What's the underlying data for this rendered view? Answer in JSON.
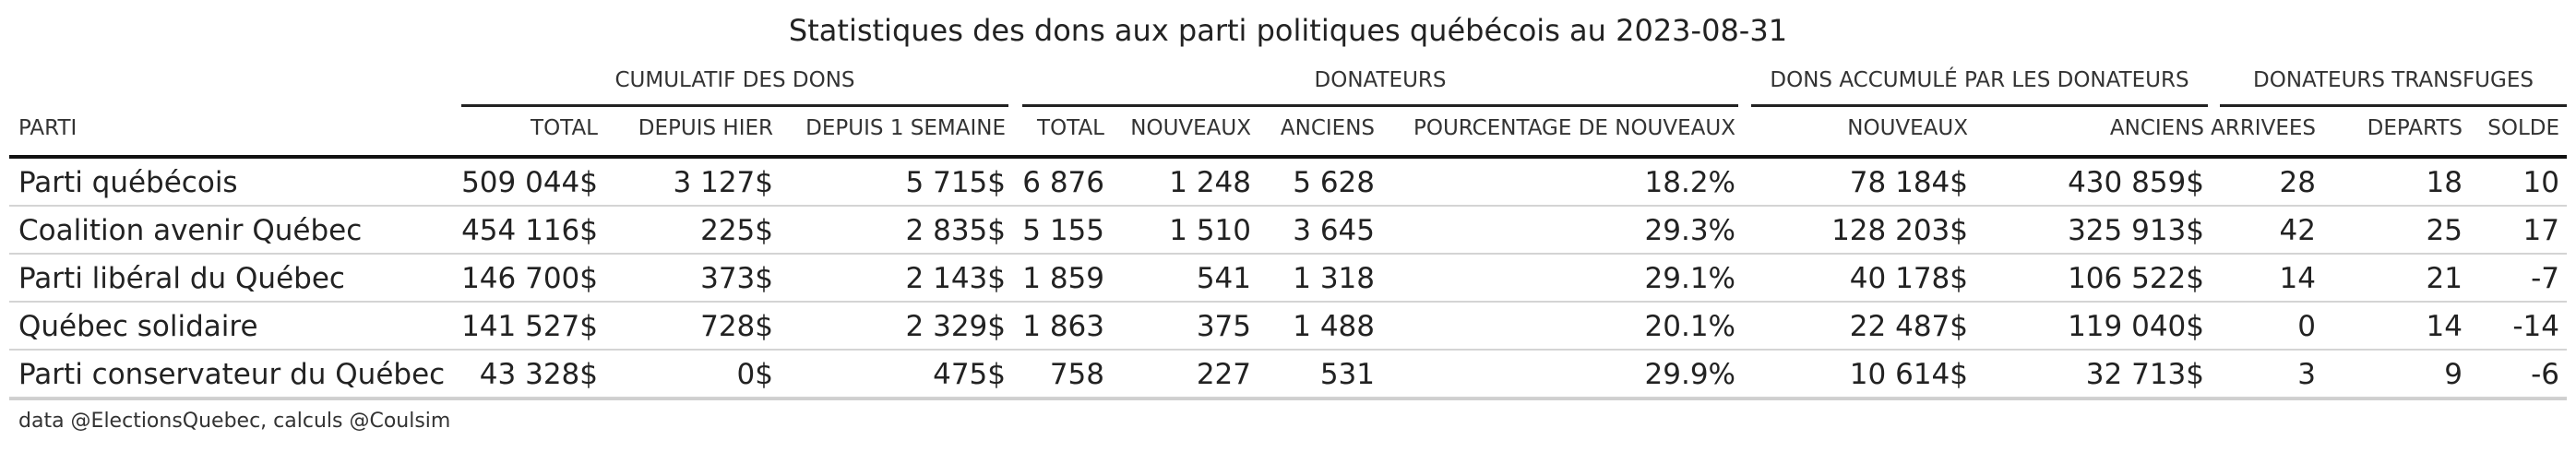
{
  "chart_data": {
    "type": "table",
    "title": "Statistiques des dons aux parti politiques québécois au 2023-08-31",
    "column_groups": [
      {
        "label": "CUMULATIF DES DONS",
        "columns": [
          "TOTAL",
          "DEPUIS HIER",
          "DEPUIS 1 SEMAINE"
        ]
      },
      {
        "label": "DONATEURS",
        "columns": [
          "TOTAL",
          "NOUVEAUX",
          "ANCIENS",
          "POURCENTAGE DE NOUVEAUX"
        ]
      },
      {
        "label": "DONS ACCUMULÉ PAR LES DONATEURS",
        "columns": [
          "NOUVEAUX",
          "ANCIENS"
        ]
      },
      {
        "label": "DONATEURS TRANSFUGES",
        "columns": [
          "ARRIVEES",
          "DEPARTS",
          "SOLDE"
        ]
      }
    ],
    "columns": [
      "PARTI",
      "TOTAL",
      "DEPUIS HIER",
      "DEPUIS 1 SEMAINE",
      "TOTAL",
      "NOUVEAUX",
      "ANCIENS",
      "POURCENTAGE DE NOUVEAUX",
      "NOUVEAUX",
      "ANCIENS",
      "ARRIVEES",
      "DEPARTS",
      "SOLDE"
    ],
    "rows": [
      [
        "Parti québécois",
        "509 044$",
        "3 127$",
        "5 715$",
        "6 876",
        "1 248",
        "5 628",
        "18.2%",
        "78 184$",
        "430 859$",
        "28",
        "18",
        "10"
      ],
      [
        "Coalition avenir Québec",
        "454 116$",
        "225$",
        "2 835$",
        "5 155",
        "1 510",
        "3 645",
        "29.3%",
        "128 203$",
        "325 913$",
        "42",
        "25",
        "17"
      ],
      [
        "Parti libéral du Québec",
        "146 700$",
        "373$",
        "2 143$",
        "1 859",
        "541",
        "1 318",
        "29.1%",
        "40 178$",
        "106 522$",
        "14",
        "21",
        "-7"
      ],
      [
        "Québec solidaire",
        "141 527$",
        "728$",
        "2 329$",
        "1 863",
        "375",
        "1 488",
        "20.1%",
        "22 487$",
        "119 040$",
        "0",
        "14",
        "-14"
      ],
      [
        "Parti conservateur du Québec",
        "43 328$",
        "0$",
        "475$",
        "758",
        "227",
        "531",
        "29.9%",
        "10 614$",
        "32 713$",
        "3",
        "9",
        "-6"
      ]
    ],
    "footer": "data @ElectionsQuebec, calculs @Coulsim"
  }
}
